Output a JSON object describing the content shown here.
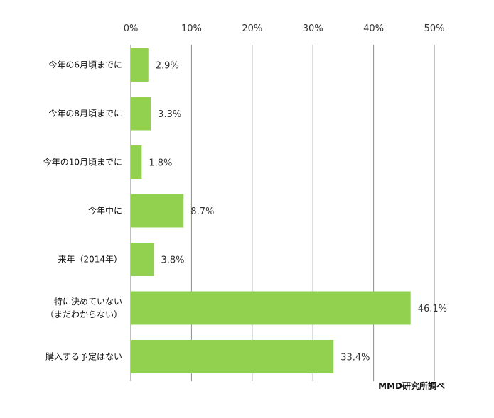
{
  "chart_data": {
    "type": "bar",
    "orientation": "horizontal",
    "xlim": [
      0,
      50
    ],
    "ticks": [
      "0%",
      "10%",
      "20%",
      "30%",
      "40%",
      "50%"
    ],
    "tick_values": [
      0,
      10,
      20,
      30,
      40,
      50
    ],
    "grid": true,
    "bar_color": "#92d050",
    "categories": [
      [
        "今年の6月頃までに"
      ],
      [
        "今年の8月頃までに"
      ],
      [
        "今年の10月頃までに"
      ],
      [
        "今年中に"
      ],
      [
        "来年（2014年）"
      ],
      [
        "特に決めていない",
        "（まだわからない）"
      ],
      [
        "購入する予定はない"
      ]
    ],
    "values": [
      2.9,
      3.3,
      1.8,
      8.7,
      3.8,
      46.1,
      33.4
    ],
    "value_labels": [
      "2.9%",
      "3.3%",
      "1.8%",
      "8.7%",
      "3.8%",
      "46.1%",
      "33.4%"
    ],
    "source": "MMD研究所調べ"
  }
}
